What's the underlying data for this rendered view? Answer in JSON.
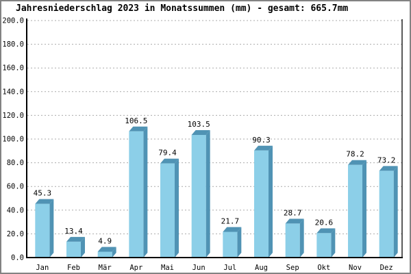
{
  "title": "Jahresniederschlag 2023 in Monatssummen (mm) - gesamt: 665.7mm",
  "chart_data": {
    "type": "bar",
    "title": "Jahresniederschlag 2023 in Monatssummen (mm) - gesamt: 665.7mm",
    "subtitle": "",
    "xlabel": "",
    "ylabel": "",
    "unit": "mm",
    "total_label": "gesamt: 665.7mm",
    "total_mm": 665.7,
    "categories": [
      "Jan",
      "Feb",
      "Mär",
      "Apr",
      "Mai",
      "Jun",
      "Jul",
      "Aug",
      "Sep",
      "Okt",
      "Nov",
      "Dez"
    ],
    "values": [
      45.3,
      13.4,
      4.9,
      106.5,
      79.4,
      103.5,
      21.7,
      90.3,
      28.7,
      20.6,
      78.2,
      73.2
    ],
    "value_labels": [
      "45.3",
      "13.4",
      "4.9",
      "106.5",
      "79.4",
      "103.5",
      "21.7",
      "90.3",
      "28.7",
      "20.6",
      "78.2",
      "73.2"
    ],
    "ylim": [
      0,
      200
    ],
    "ytick_step": 20,
    "ytick_labels": [
      "0.0",
      "20.0",
      "40.0",
      "60.0",
      "80.0",
      "100.0",
      "120.0",
      "140.0",
      "160.0",
      "180.0",
      "200.0"
    ],
    "grid": "horizontal-dotted",
    "legend": "none",
    "style": {
      "bar_front_color": "#8CCFE8",
      "bar_shade_color": "#5093B4",
      "grid_color": "#aaaaaa",
      "axis_color": "#000000",
      "text_color": "#000000",
      "background": "#ffffff",
      "frame_color": "#828282",
      "effect": "3d-offset-bars"
    }
  }
}
